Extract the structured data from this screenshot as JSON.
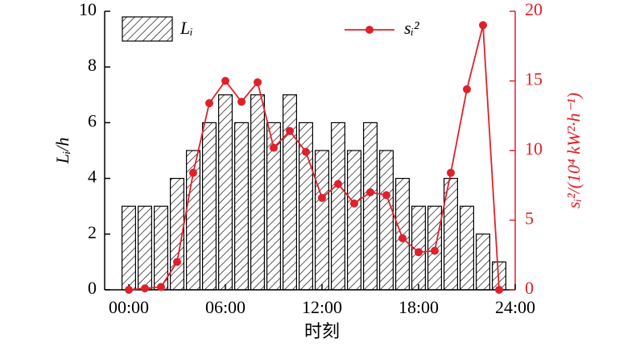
{
  "chart_data": {
    "type": "bar_line",
    "x": [
      0,
      1,
      2,
      3,
      4,
      5,
      6,
      7,
      8,
      9,
      10,
      11,
      12,
      13,
      14,
      15,
      16,
      17,
      18,
      19,
      20,
      21,
      22,
      23
    ],
    "xlim": [
      -1.5,
      24
    ],
    "xticks": [
      {
        "value": 0,
        "label": "00:00"
      },
      {
        "value": 6,
        "label": "06:00"
      },
      {
        "value": 12,
        "label": "12:00"
      },
      {
        "value": 18,
        "label": "18:00"
      },
      {
        "value": 24,
        "label": "24:00"
      }
    ],
    "xlabel": "时刻",
    "ylabel": "Lᵢ/h",
    "y2label": "sᵢ²/(10⁴ kW²·h⁻¹)",
    "ylim": [
      0,
      10
    ],
    "yticks": [
      0,
      2,
      4,
      6,
      8,
      10
    ],
    "y2lim": [
      0,
      20
    ],
    "y2ticks": [
      0,
      5,
      10,
      15,
      20
    ],
    "series": [
      {
        "name": "Lᵢ",
        "type": "bar",
        "color": "#000000",
        "values": [
          3,
          3,
          3,
          4,
          5,
          6,
          7,
          6,
          7,
          6,
          7,
          6,
          5,
          6,
          5,
          6,
          5,
          4,
          3,
          3,
          4,
          3,
          2,
          1
        ]
      },
      {
        "name": "sᵢ²",
        "type": "line",
        "axis": "y2",
        "color": "#e0202a",
        "values": [
          0,
          0.1,
          0.2,
          2,
          8.4,
          13.4,
          15,
          13.5,
          14.9,
          10.2,
          11.4,
          9.9,
          6.6,
          7.6,
          6.2,
          7,
          6.8,
          3.7,
          2.7,
          2.8,
          8.4,
          14.4,
          19,
          0
        ]
      }
    ]
  }
}
